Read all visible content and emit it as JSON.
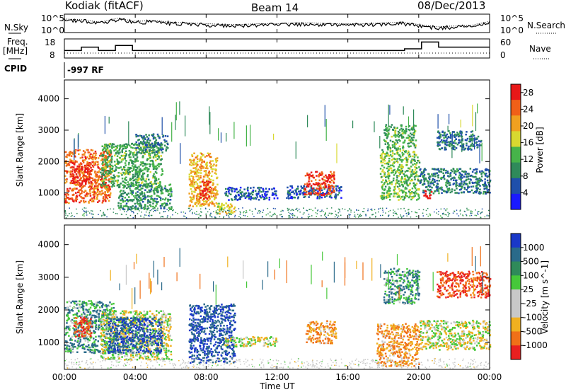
{
  "header": {
    "station": "Kodiak (fitACF)",
    "beam": "Beam 14",
    "date": "08/Dec/2013"
  },
  "noise_panel": {
    "left_label": "N.Sky",
    "right_label": "N.Search",
    "left_ticks": [
      "10^5",
      "10^0"
    ],
    "right_ticks": [
      "10^5",
      "10^0"
    ]
  },
  "freq_panel": {
    "left_label_1": "Freq.",
    "left_label_2": "[MHz]",
    "right_label": "Nave",
    "left_ticks": [
      "18",
      "8"
    ],
    "right_ticks": [
      "60",
      "0"
    ]
  },
  "cpid": {
    "label": "CPID",
    "value": "-997 RF"
  },
  "x_axis": {
    "label": "Time UT",
    "ticks": [
      "00:00",
      "04:00",
      "08:00",
      "12:00",
      "16:00",
      "20:00",
      "00:00"
    ]
  },
  "chart_data": [
    {
      "type": "heatmap",
      "title": "",
      "xlabel": "Time UT",
      "ylabel": "Slant Range [km]",
      "xlim": [
        0,
        24
      ],
      "ylim": [
        180,
        4600
      ],
      "yticks": [
        "1000",
        "2000",
        "3000",
        "4000"
      ],
      "ytick_values": [
        1000,
        2000,
        3000,
        4000
      ],
      "colorbar_label": "Power [dB]",
      "colorbar_ticks": [
        "4",
        "8",
        "12",
        "16",
        "20",
        "24",
        "28"
      ],
      "colorbar_tick_values": [
        4,
        8,
        12,
        16,
        20,
        24,
        28
      ],
      "colorbar_range": [
        0,
        30
      ],
      "colorbar_colors": [
        "#1a1aff",
        "#1f4faa",
        "#2f8a5a",
        "#46b34a",
        "#d8d830",
        "#f0a020",
        "#f06018",
        "#e81818"
      ],
      "regions": [
        {
          "t0": 0.0,
          "t1": 2.6,
          "r0": 700,
          "r1": 2400,
          "value": 24
        },
        {
          "t0": 0.3,
          "t1": 1.5,
          "r0": 1300,
          "r1": 2000,
          "value": 28
        },
        {
          "t0": 2.0,
          "t1": 5.5,
          "r0": 1200,
          "r1": 2600,
          "value": 12
        },
        {
          "t0": 3.0,
          "t1": 6.0,
          "r0": 500,
          "r1": 1300,
          "value": 10
        },
        {
          "t0": 4.0,
          "t1": 5.8,
          "r0": 2300,
          "r1": 2900,
          "value": 8
        },
        {
          "t0": 7.0,
          "t1": 8.6,
          "r0": 600,
          "r1": 2300,
          "value": 20
        },
        {
          "t0": 7.6,
          "t1": 8.2,
          "r0": 800,
          "r1": 1400,
          "value": 28
        },
        {
          "t0": 8.5,
          "t1": 9.6,
          "r0": 350,
          "r1": 700,
          "value": 18
        },
        {
          "t0": 9.0,
          "t1": 12.0,
          "r0": 800,
          "r1": 1200,
          "value": 6
        },
        {
          "t0": 12.5,
          "t1": 15.6,
          "r0": 850,
          "r1": 1250,
          "value": 6
        },
        {
          "t0": 13.5,
          "t1": 15.2,
          "r0": 950,
          "r1": 1700,
          "value": 26
        },
        {
          "t0": 17.8,
          "t1": 20.0,
          "r0": 800,
          "r1": 2400,
          "value": 14
        },
        {
          "t0": 20.0,
          "t1": 24.0,
          "r0": 1000,
          "r1": 1800,
          "value": 8
        },
        {
          "t0": 20.2,
          "t1": 20.7,
          "r0": 850,
          "r1": 1100,
          "value": 28
        },
        {
          "t0": 18.0,
          "t1": 19.8,
          "r0": 2400,
          "r1": 3200,
          "value": 12
        },
        {
          "t0": 21.0,
          "t1": 23.5,
          "r0": 2400,
          "r1": 3000,
          "value": 8
        }
      ]
    },
    {
      "type": "heatmap",
      "title": "",
      "xlabel": "Time UT",
      "ylabel": "Slant Range [km]",
      "xlim": [
        0,
        24
      ],
      "ylim": [
        180,
        4600
      ],
      "yticks": [
        "1000",
        "2000",
        "3000",
        "4000"
      ],
      "ytick_values": [
        1000,
        2000,
        3000,
        4000
      ],
      "colorbar_label": "Velocity [m s^-1]",
      "colorbar_ticks": [
        "1000",
        "500",
        "100",
        "25",
        "-25",
        "-100",
        "-500",
        "-1000"
      ],
      "colorbar_colors": [
        "#1a38c8",
        "#2a6a8a",
        "#2f8a5a",
        "#46c83a",
        "#c8c8c8",
        "#c8c8c8",
        "#f0b020",
        "#f07018",
        "#e82020"
      ],
      "regions": [
        {
          "t0": 0.0,
          "t1": 2.8,
          "r0": 700,
          "r1": 2300,
          "value": 100
        },
        {
          "t0": 0.5,
          "t1": 1.5,
          "r0": 1200,
          "r1": 1800,
          "value": -500
        },
        {
          "t0": 2.0,
          "t1": 6.0,
          "r0": 500,
          "r1": 2000,
          "value": 0
        },
        {
          "t0": 2.4,
          "t1": 5.5,
          "r0": 700,
          "r1": 1800,
          "value": 500
        },
        {
          "t0": 7.0,
          "t1": 9.6,
          "r0": 400,
          "r1": 2200,
          "value": 500
        },
        {
          "t0": 9.0,
          "t1": 12.0,
          "r0": 900,
          "r1": 1200,
          "value": 0
        },
        {
          "t0": 13.6,
          "t1": 15.3,
          "r0": 1000,
          "r1": 1700,
          "value": -100
        },
        {
          "t0": 17.6,
          "t1": 20.0,
          "r0": 300,
          "r1": 1600,
          "value": -100
        },
        {
          "t0": 18.0,
          "t1": 20.0,
          "r0": 2200,
          "r1": 3300,
          "value": 100
        },
        {
          "t0": 20.0,
          "t1": 24.0,
          "r0": 800,
          "r1": 1700,
          "value": 0
        },
        {
          "t0": 21.0,
          "t1": 24.0,
          "r0": 2400,
          "r1": 3200,
          "value": -500
        }
      ]
    }
  ],
  "noise_series": {
    "sky_level": [
      0.7,
      0.65,
      0.5,
      0.75,
      0.55,
      0.6,
      0.5,
      0.45,
      0.4,
      0.35,
      0.35,
      0.4,
      0.4,
      0.45,
      0.45,
      0.4,
      0.4,
      0.4,
      0.45,
      0.5,
      0.35,
      0.2,
      0.25,
      0.3,
      0.55
    ]
  },
  "freq_series": {
    "freq_mhz": [
      12,
      14,
      12,
      15,
      12,
      12,
      12,
      12,
      12,
      12,
      12,
      12,
      12,
      12,
      12,
      12,
      12,
      12,
      12,
      12,
      13,
      17,
      14,
      14,
      14
    ]
  }
}
